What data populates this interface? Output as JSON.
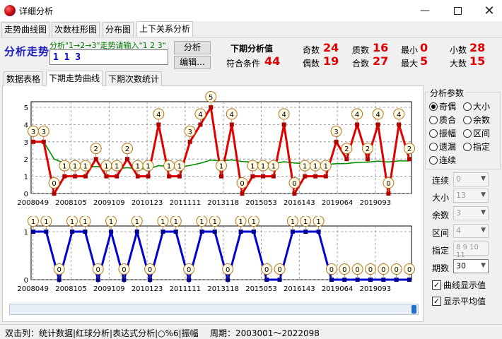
{
  "window": {
    "title": "详细分析",
    "minimize_icon": "minimize-icon",
    "maximize_icon": "maximize-icon",
    "close_icon": "close-icon"
  },
  "top_tabs": [
    "走势曲线图",
    "次数柱形图",
    "分布图",
    "上下关系分析"
  ],
  "header": {
    "title": "分析走势",
    "hint": "分析\"1→2→3\"走势请输入\"1 2 3\"",
    "pattern_value": "1 1 3",
    "analyze_button": "分析",
    "edit_button": "编辑...",
    "next_title": "下期分析值",
    "match_label": "符合条件",
    "match_value": "44",
    "stats": [
      {
        "label": "奇数",
        "value": "24"
      },
      {
        "label": "偶数",
        "value": "19"
      },
      {
        "label": "质数",
        "value": "16"
      },
      {
        "label": "合数",
        "value": "27"
      },
      {
        "label": "最小",
        "value": "0"
      },
      {
        "label": "最大",
        "value": "5"
      },
      {
        "label": "小数",
        "value": "28"
      },
      {
        "label": "大数",
        "value": "15"
      }
    ]
  },
  "sub_tabs": [
    "数据表格",
    "下期走势曲线",
    "下期次数统计"
  ],
  "params": {
    "title": "分析参数",
    "radios": [
      "奇偶",
      "大小",
      "质合",
      "余数",
      "振幅",
      "区间",
      "遗漏",
      "指定",
      "连续"
    ],
    "selected_radio": "奇偶",
    "fields": [
      {
        "label": "连续",
        "value": "0",
        "enabled": false
      },
      {
        "label": "大小",
        "value": "13",
        "enabled": false
      },
      {
        "label": "余数",
        "value": "3",
        "enabled": false
      },
      {
        "label": "区间",
        "value": "4",
        "enabled": false
      },
      {
        "label": "指定",
        "value": "8 9 10 11",
        "enabled": false
      },
      {
        "label": "期数",
        "value": "30",
        "enabled": true
      }
    ],
    "checkboxes": [
      {
        "label": "曲线显示值",
        "checked": true
      },
      {
        "label": "显示平均值",
        "checked": true
      }
    ]
  },
  "status": {
    "text": "双击列：统计数据|红球分析|表达式分析|○%6|振幅",
    "period_label": "周期：",
    "period_value": "2003001～2022098"
  },
  "chart_data": [
    {
      "type": "line",
      "ylim": [
        0,
        5
      ],
      "yticks": [
        0,
        1,
        2,
        3,
        4,
        5
      ],
      "xticks": [
        "2008049",
        "2008105",
        "2009109",
        "2010123",
        "2011111",
        "2013118",
        "2015053",
        "2016143",
        "2019064",
        "2019093"
      ],
      "values": [
        3,
        3,
        0,
        1,
        1,
        1,
        2,
        1,
        1,
        2,
        1,
        1,
        4,
        1,
        1,
        3,
        4,
        5,
        1,
        4,
        0,
        1,
        1,
        1,
        4,
        0,
        1,
        1,
        1,
        3,
        2,
        4,
        2,
        4,
        0,
        4,
        2
      ],
      "average": [
        3,
        3,
        2,
        1.75,
        1.6,
        1.5,
        1.57,
        1.5,
        1.44,
        1.5,
        1.45,
        1.42,
        1.62,
        1.57,
        1.53,
        1.63,
        1.76,
        1.94,
        1.89,
        1.95,
        1.86,
        1.82,
        1.78,
        1.75,
        1.84,
        1.77,
        1.74,
        1.71,
        1.69,
        1.73,
        1.74,
        1.81,
        1.82,
        1.88,
        1.83,
        1.89,
        1.89
      ],
      "series_color": "#e00000",
      "average_color": "#009000"
    },
    {
      "type": "line",
      "ylim": [
        0,
        1
      ],
      "yticks": [
        0,
        1
      ],
      "xticks": [
        "2008049",
        "2008105",
        "2009109",
        "2010123",
        "2011111",
        "2013118",
        "2015053",
        "2016143",
        "2019064",
        "2019093"
      ],
      "values": [
        1,
        1,
        0,
        1,
        1,
        0,
        1,
        0,
        1,
        0,
        1,
        1,
        0,
        1,
        1,
        0,
        1,
        1,
        0,
        0,
        1,
        1,
        1,
        0,
        0,
        0,
        0,
        0,
        0,
        0
      ],
      "series_color": "#0000d0"
    }
  ]
}
